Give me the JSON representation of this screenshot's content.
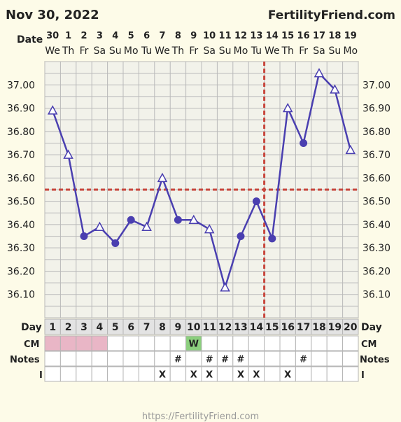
{
  "header": {
    "date_text": "Nov 30, 2022",
    "site_name": "FertilityFriend.com"
  },
  "footer": {
    "url_text": "https://FertilityFriend.com"
  },
  "row_labels": {
    "date": "Date",
    "day_left": "Day",
    "day_right": "Day",
    "cm_left": "CM",
    "cm_right": "CM",
    "notes_left": "Notes",
    "notes_right": "Notes",
    "i_left": "I",
    "i_right": "I"
  },
  "colors": {
    "line": "#4a3fb0",
    "marker_fill": "#4a3fb0",
    "grid": "#b9b9b9",
    "plot_bg": "#f2f2ea",
    "coverline": "#c8463c",
    "ovulation_line": "#c8463c",
    "period": "#e9b6c6",
    "cm_watery": "#8ccf7e",
    "day_row_bg": "#e3e3e3"
  },
  "chart_data": {
    "type": "line",
    "title": "",
    "xlabel": "",
    "ylabel": "",
    "y_ticks": [
      "36.10",
      "36.20",
      "36.30",
      "36.40",
      "36.50",
      "36.60",
      "36.70",
      "36.80",
      "36.90",
      "37.00"
    ],
    "dates": [
      "30",
      "1",
      "2",
      "3",
      "4",
      "5",
      "6",
      "7",
      "8",
      "9",
      "10",
      "11",
      "12",
      "13",
      "14",
      "15",
      "16",
      "17",
      "18",
      "19"
    ],
    "weekdays": [
      "We",
      "Th",
      "Fr",
      "Sa",
      "Su",
      "Mo",
      "Tu",
      "We",
      "Th",
      "Fr",
      "Sa",
      "Su",
      "Mo",
      "Tu",
      "We",
      "Th",
      "Fr",
      "Sa",
      "Su",
      "Mo"
    ],
    "cycle_days": [
      "1",
      "2",
      "3",
      "4",
      "5",
      "6",
      "7",
      "8",
      "9",
      "10",
      "11",
      "12",
      "13",
      "14",
      "15",
      "16",
      "17",
      "18",
      "19",
      "20"
    ],
    "series": [
      {
        "values": [
          36.89,
          36.7,
          36.35,
          36.39,
          36.32,
          36.42,
          36.39,
          36.6,
          36.42,
          36.42,
          36.38,
          36.13,
          36.35,
          36.5,
          36.34,
          36.9,
          36.75,
          37.05,
          36.98,
          36.72
        ],
        "markers": [
          "triangle",
          "triangle",
          "circle",
          "triangle",
          "circle",
          "circle",
          "triangle",
          "triangle",
          "circle",
          "triangle",
          "triangle",
          "triangle",
          "circle",
          "circle",
          "circle",
          "triangle",
          "circle",
          "triangle",
          "triangle",
          "triangle"
        ]
      }
    ],
    "coverline": 36.55,
    "ovulation_day": 15,
    "period_days": [
      1,
      2,
      3,
      4
    ],
    "cm": [
      "",
      "",
      "",
      "",
      "",
      "",
      "",
      "",
      "",
      "W",
      "",
      "",
      "",
      "",
      "",
      "",
      "",
      "",
      "",
      ""
    ],
    "notes": [
      "",
      "",
      "",
      "",
      "",
      "",
      "",
      "",
      "#",
      "",
      "#",
      "#",
      "#",
      "",
      "",
      "",
      "#",
      "",
      "",
      ""
    ],
    "intercourse": [
      "",
      "",
      "",
      "",
      "",
      "",
      "",
      "X",
      "",
      "X",
      "X",
      "",
      "X",
      "X",
      "",
      "X",
      "",
      "",
      "",
      ""
    ],
    "ylim": [
      36.0,
      37.1
    ]
  }
}
